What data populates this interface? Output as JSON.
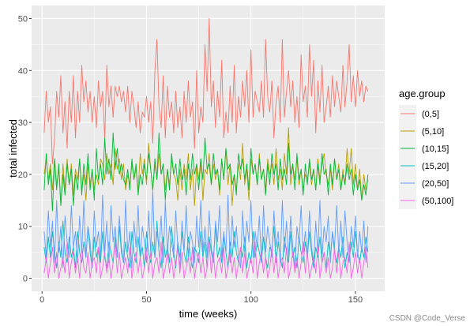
{
  "chart_data": {
    "type": "line",
    "xlabel": "time (weeks)",
    "ylabel": "total infected",
    "xlim": [
      -5,
      164
    ],
    "ylim": [
      -2.5,
      52.5
    ],
    "x_ticks": [
      0,
      50,
      100,
      150
    ],
    "y_ticks": [
      0,
      10,
      20,
      30,
      40,
      50
    ],
    "grid": true,
    "legend": {
      "title": "age.group",
      "position": "right"
    },
    "x": [
      1,
      2,
      3,
      4,
      5,
      6,
      7,
      8,
      9,
      10,
      11,
      12,
      13,
      14,
      15,
      16,
      17,
      18,
      19,
      20,
      21,
      22,
      23,
      24,
      25,
      26,
      27,
      28,
      29,
      30,
      31,
      32,
      33,
      34,
      35,
      36,
      37,
      38,
      39,
      40,
      41,
      42,
      43,
      44,
      45,
      46,
      47,
      48,
      49,
      50,
      51,
      52,
      53,
      54,
      55,
      56,
      57,
      58,
      59,
      60,
      61,
      62,
      63,
      64,
      65,
      66,
      67,
      68,
      69,
      70,
      71,
      72,
      73,
      74,
      75,
      76,
      77,
      78,
      79,
      80,
      81,
      82,
      83,
      84,
      85,
      86,
      87,
      88,
      89,
      90,
      91,
      92,
      93,
      94,
      95,
      96,
      97,
      98,
      99,
      100,
      101,
      102,
      103,
      104,
      105,
      106,
      107,
      108,
      109,
      110,
      111,
      112,
      113,
      114,
      115,
      116,
      117,
      118,
      119,
      120,
      121,
      122,
      123,
      124,
      125,
      126,
      127,
      128,
      129,
      130,
      131,
      132,
      133,
      134,
      135,
      136,
      137,
      138,
      139,
      140,
      141,
      142,
      143,
      144,
      145,
      146,
      147,
      148,
      149,
      150,
      151,
      152,
      153,
      154,
      155,
      156
    ],
    "series": [
      {
        "name": "(0,5]",
        "color": "#F8766D",
        "values": [
          28,
          36,
          30,
          33,
          22,
          27,
          36,
          31,
          39,
          28,
          34,
          25,
          36,
          30,
          39,
          27,
          36,
          30,
          41,
          34,
          38,
          32,
          36,
          30,
          35,
          29,
          38,
          33,
          36,
          27,
          41,
          33,
          37,
          31,
          37,
          35,
          37,
          34,
          36,
          32,
          37,
          30,
          36,
          33,
          29,
          34,
          28,
          32,
          31,
          35,
          30,
          34,
          26,
          40,
          46,
          33,
          29,
          39,
          27,
          37,
          31,
          34,
          28,
          36,
          29,
          33,
          27,
          36,
          30,
          38,
          31,
          34,
          25,
          40,
          28,
          33,
          30,
          45,
          36,
          50,
          33,
          38,
          29,
          36,
          31,
          42,
          27,
          32,
          28,
          37,
          30,
          41,
          28,
          35,
          31,
          38,
          33,
          40,
          30,
          44,
          31,
          36,
          34,
          32,
          38,
          31,
          46,
          35,
          32,
          38,
          27,
          34,
          37,
          30,
          46,
          31,
          36,
          40,
          33,
          38,
          30,
          35,
          29,
          43,
          34,
          37,
          31,
          45,
          35,
          42,
          28,
          38,
          32,
          41,
          30,
          33,
          37,
          31,
          39,
          33,
          38,
          35,
          32,
          41,
          33,
          38,
          45,
          34,
          39,
          33,
          40,
          35,
          38,
          34,
          37,
          36
        ]
      },
      {
        "name": "(5,10]",
        "color": "#B79F00",
        "values": [
          20,
          23,
          19,
          22,
          17,
          23,
          18,
          21,
          14,
          22,
          17,
          23,
          18,
          22,
          16,
          21,
          19,
          23,
          17,
          20,
          15,
          22,
          18,
          21,
          17,
          20,
          18,
          23,
          22,
          19,
          24,
          20,
          22,
          18,
          25,
          21,
          23,
          19,
          22,
          17,
          20,
          18,
          22,
          19,
          21,
          17,
          24,
          20,
          23,
          18,
          26,
          21,
          17,
          22,
          19,
          24,
          20,
          22,
          17,
          21,
          18,
          23,
          20,
          19,
          15,
          21,
          17,
          22,
          19,
          24,
          17,
          21,
          14,
          22,
          19,
          23,
          15,
          21,
          20,
          24,
          18,
          22,
          19,
          21,
          16,
          23,
          19,
          25,
          18,
          22,
          14,
          20,
          17,
          22,
          19,
          26,
          18,
          21,
          15,
          23,
          20,
          22,
          18,
          24,
          19,
          21,
          17,
          23,
          20,
          22,
          18,
          25,
          19,
          21,
          17,
          24,
          20,
          29,
          18,
          22,
          19,
          23,
          18,
          21,
          17,
          20,
          19,
          22,
          18,
          21,
          17,
          23,
          19,
          22,
          24,
          20,
          18,
          21,
          17,
          23,
          19,
          22,
          17,
          21,
          18,
          25,
          20,
          25,
          18,
          22,
          17,
          21,
          15,
          20,
          17,
          19
        ]
      },
      {
        "name": "(10,15]",
        "color": "#00BA38",
        "values": [
          17,
          24,
          18,
          21,
          13,
          23,
          17,
          22,
          14,
          20,
          16,
          22,
          18,
          21,
          14,
          20,
          17,
          23,
          16,
          22,
          18,
          24,
          17,
          21,
          15,
          25,
          19,
          22,
          18,
          27,
          20,
          23,
          19,
          28,
          21,
          25,
          20,
          22,
          19,
          18,
          21,
          17,
          23,
          19,
          22,
          16,
          20,
          18,
          22,
          19,
          24,
          21,
          17,
          23,
          19,
          28,
          20,
          22,
          15,
          21,
          17,
          24,
          20,
          22,
          18,
          23,
          19,
          21,
          16,
          22,
          19,
          24,
          20,
          22,
          17,
          23,
          19,
          27,
          21,
          22,
          18,
          24,
          20,
          21,
          17,
          23,
          19,
          25,
          21,
          22,
          18,
          20,
          16,
          24,
          21,
          23,
          19,
          22,
          17,
          25,
          20,
          22,
          18,
          23,
          19,
          21,
          16,
          22,
          18,
          24,
          20,
          22,
          17,
          23,
          19,
          21,
          18,
          26,
          20,
          22,
          17,
          24,
          19,
          21,
          16,
          22,
          18,
          23,
          19,
          21,
          17,
          22,
          18,
          24,
          20,
          21,
          16,
          22,
          18,
          23,
          19,
          21,
          17,
          20,
          18,
          22,
          19,
          21,
          16,
          20,
          17,
          19,
          15,
          18,
          16,
          20
        ]
      },
      {
        "name": "(15,20]",
        "color": "#00BFC4",
        "values": [
          6,
          3,
          8,
          4,
          9,
          5,
          2,
          7,
          4,
          11,
          5,
          3,
          8,
          4,
          6,
          2,
          9,
          5,
          3,
          7,
          4,
          10,
          5,
          2,
          8,
          4,
          6,
          3,
          9,
          4,
          2,
          7,
          5,
          3,
          8,
          4,
          10,
          5,
          3,
          7,
          4,
          2,
          9,
          5,
          3,
          8,
          4,
          6,
          2,
          9,
          5,
          3,
          7,
          4,
          11,
          5,
          2,
          8,
          4,
          6,
          3,
          10,
          5,
          2,
          7,
          4,
          9,
          5,
          3,
          8,
          4,
          2,
          6,
          5,
          3,
          9,
          4,
          7,
          2,
          8,
          5,
          3,
          10,
          4,
          6,
          3,
          8,
          5,
          2,
          7,
          4,
          9,
          5,
          3,
          6,
          4,
          8,
          2,
          5,
          3,
          9,
          4,
          7,
          5,
          3,
          8,
          4,
          2,
          6,
          5,
          10,
          3,
          7,
          4,
          2,
          8,
          5,
          3,
          9,
          4,
          6,
          2,
          8,
          5,
          3,
          7,
          4,
          9,
          5,
          2,
          6,
          4,
          8,
          3,
          5,
          2,
          7,
          4,
          9,
          5,
          3,
          6,
          4,
          8,
          2,
          5,
          3,
          7,
          4,
          9,
          5,
          3,
          6,
          4,
          8,
          5
        ]
      },
      {
        "name": "(20,50]",
        "color": "#619CFF",
        "values": [
          9,
          4,
          13,
          6,
          11,
          3,
          15,
          5,
          10,
          2,
          12,
          7,
          4,
          14,
          6,
          9,
          3,
          12,
          5,
          15,
          4,
          10,
          7,
          2,
          13,
          6,
          9,
          4,
          16,
          5,
          11,
          3,
          14,
          7,
          10,
          4,
          12,
          6,
          3,
          15,
          5,
          9,
          2,
          11,
          6,
          14,
          4,
          10,
          7,
          3,
          13,
          5,
          17,
          4,
          9,
          6,
          12,
          3,
          15,
          5,
          10,
          7,
          4,
          13,
          6,
          2,
          11,
          5,
          14,
          4,
          9,
          7,
          3,
          12,
          6,
          15,
          5,
          10,
          4,
          13,
          6,
          3,
          11,
          7,
          14,
          4,
          9,
          5,
          16,
          3,
          12,
          6,
          10,
          4,
          2,
          13,
          5,
          11,
          7,
          15,
          4,
          9,
          6,
          12,
          3,
          14,
          5,
          10,
          7,
          4,
          13,
          6,
          9,
          3,
          15,
          5,
          11,
          4,
          12,
          6,
          2,
          10,
          7,
          14,
          5,
          9,
          4,
          13,
          6,
          3,
          11,
          5,
          15,
          4,
          10,
          7,
          12,
          3,
          9,
          6,
          14,
          5,
          11,
          4,
          13,
          7,
          3,
          10,
          6,
          12,
          4,
          9,
          5,
          11,
          3,
          10
        ]
      },
      {
        "name": "(50,100]",
        "color": "#F564E3",
        "values": [
          1,
          4,
          0,
          3,
          6,
          1,
          5,
          0,
          2,
          4,
          1,
          7,
          0,
          3,
          5,
          1,
          4,
          0,
          6,
          2,
          1,
          5,
          0,
          3,
          4,
          1,
          6,
          0,
          2,
          5,
          1,
          4,
          0,
          3,
          7,
          1,
          5,
          0,
          2,
          4,
          1,
          6,
          0,
          3,
          5,
          1,
          4,
          0,
          2,
          6,
          1,
          5,
          0,
          3,
          4,
          1,
          7,
          0,
          2,
          5,
          1,
          4,
          0,
          3,
          6,
          1,
          5,
          0,
          2,
          4,
          1,
          6,
          0,
          3,
          5,
          1,
          4,
          0,
          2,
          7,
          1,
          5,
          0,
          3,
          4,
          1,
          6,
          0,
          2,
          5,
          1,
          4,
          0,
          3,
          6,
          1,
          5,
          0,
          2,
          4,
          1,
          7,
          0,
          3,
          5,
          1,
          4,
          0,
          2,
          6,
          1,
          5,
          0,
          3,
          4,
          1,
          6,
          0,
          2,
          5,
          1,
          4,
          0,
          3,
          7,
          1,
          5,
          0,
          2,
          4,
          1,
          6,
          0,
          3,
          5,
          1,
          4,
          0,
          2,
          6,
          1,
          5,
          0,
          3,
          4,
          1,
          7,
          0,
          2,
          5,
          1,
          4,
          0,
          3,
          6,
          2
        ]
      }
    ]
  },
  "watermark": "CSDN @Code_Verse"
}
